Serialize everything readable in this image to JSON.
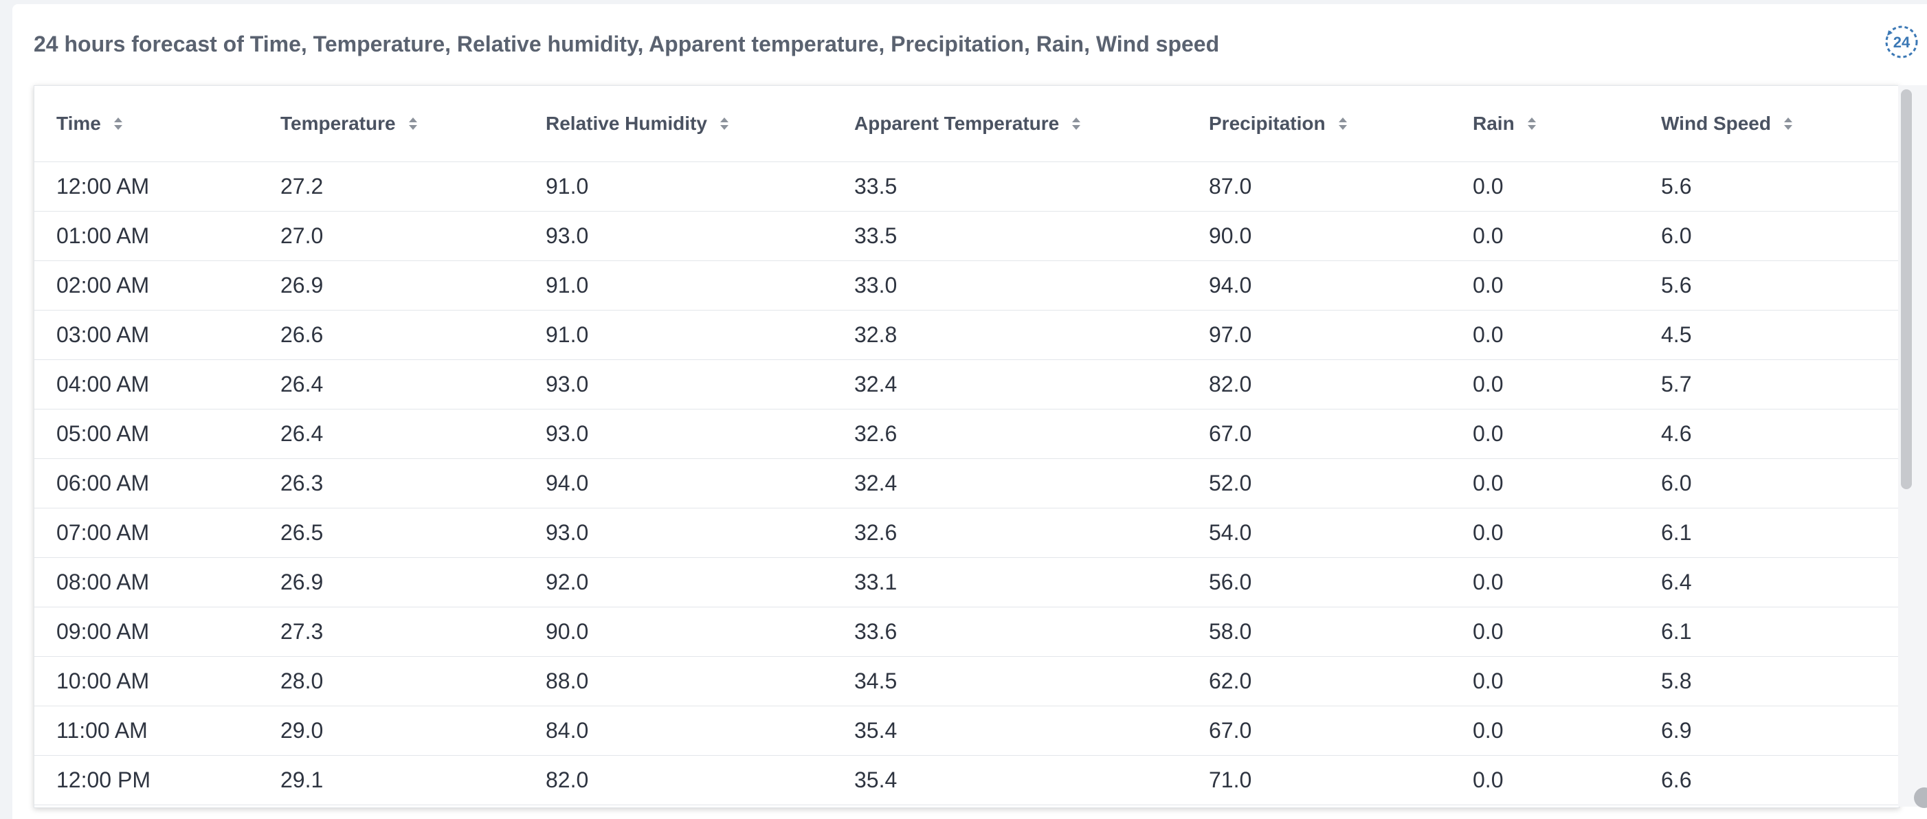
{
  "header": {
    "title": "24 hours forecast of Time, Temperature, Relative humidity, Apparent temperature, Precipitation, Rain, Wind speed",
    "icon": "24-hour-history-icon",
    "icon_text": "24",
    "accent_color": "#3b78b5"
  },
  "table": {
    "columns": [
      "Time",
      "Temperature",
      "Relative Humidity",
      "Apparent Temperature",
      "Precipitation",
      "Rain",
      "Wind Speed"
    ],
    "rows": [
      [
        "12:00 AM",
        "27.2",
        "91.0",
        "33.5",
        "87.0",
        "0.0",
        "5.6"
      ],
      [
        "01:00 AM",
        "27.0",
        "93.0",
        "33.5",
        "90.0",
        "0.0",
        "6.0"
      ],
      [
        "02:00 AM",
        "26.9",
        "91.0",
        "33.0",
        "94.0",
        "0.0",
        "5.6"
      ],
      [
        "03:00 AM",
        "26.6",
        "91.0",
        "32.8",
        "97.0",
        "0.0",
        "4.5"
      ],
      [
        "04:00 AM",
        "26.4",
        "93.0",
        "32.4",
        "82.0",
        "0.0",
        "5.7"
      ],
      [
        "05:00 AM",
        "26.4",
        "93.0",
        "32.6",
        "67.0",
        "0.0",
        "4.6"
      ],
      [
        "06:00 AM",
        "26.3",
        "94.0",
        "32.4",
        "52.0",
        "0.0",
        "6.0"
      ],
      [
        "07:00 AM",
        "26.5",
        "93.0",
        "32.6",
        "54.0",
        "0.0",
        "6.1"
      ],
      [
        "08:00 AM",
        "26.9",
        "92.0",
        "33.1",
        "56.0",
        "0.0",
        "6.4"
      ],
      [
        "09:00 AM",
        "27.3",
        "90.0",
        "33.6",
        "58.0",
        "0.0",
        "6.1"
      ],
      [
        "10:00 AM",
        "28.0",
        "88.0",
        "34.5",
        "62.0",
        "0.0",
        "5.8"
      ],
      [
        "11:00 AM",
        "29.0",
        "84.0",
        "35.4",
        "67.0",
        "0.0",
        "6.9"
      ],
      [
        "12:00 PM",
        "29.1",
        "82.0",
        "35.4",
        "71.0",
        "0.0",
        "6.6"
      ]
    ]
  }
}
